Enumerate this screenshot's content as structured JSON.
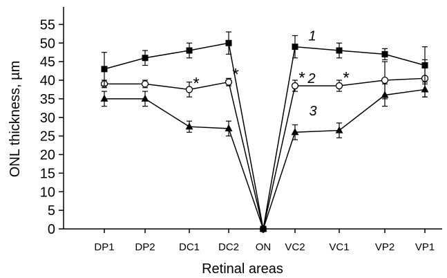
{
  "chart_data": {
    "type": "line",
    "title": "",
    "xlabel": "Retinal areas",
    "ylabel": "ONL thickness, µm",
    "ylim": [
      0,
      55
    ],
    "yticks": [
      0,
      5,
      10,
      15,
      20,
      25,
      30,
      35,
      40,
      45,
      50,
      55
    ],
    "categories": [
      "DP1",
      "DP2",
      "DC1",
      "DC2",
      "ON",
      "VC2",
      "VC1",
      "VP2",
      "VP1"
    ],
    "grid": false,
    "legend": "none",
    "series": [
      {
        "name": "1",
        "marker": "square",
        "values": [
          43,
          46,
          48,
          50,
          0,
          49,
          48,
          47,
          44
        ],
        "errors": [
          4.5,
          2,
          2,
          3,
          0,
          3,
          2,
          1.5,
          5
        ]
      },
      {
        "name": "2",
        "marker": "circle-open",
        "values": [
          39,
          39,
          37.5,
          39.5,
          0,
          38.5,
          38.5,
          40,
          40.5
        ],
        "errors": [
          1,
          1,
          2,
          1,
          0,
          1.5,
          1.5,
          5,
          5
        ]
      },
      {
        "name": "3",
        "marker": "triangle",
        "values": [
          35,
          35,
          27.5,
          27,
          0,
          26,
          26.5,
          36,
          37.5
        ],
        "errors": [
          2,
          2,
          1.5,
          2,
          0,
          2,
          2,
          3,
          2
        ]
      }
    ],
    "annotations": [
      {
        "text": "*",
        "category": "DC1",
        "y": 39.5
      },
      {
        "text": "*",
        "category": "DC2",
        "y": 42
      },
      {
        "text": "*",
        "category": "VC2",
        "y": 41
      },
      {
        "text": "*",
        "category": "VC1",
        "y": 41
      }
    ]
  }
}
